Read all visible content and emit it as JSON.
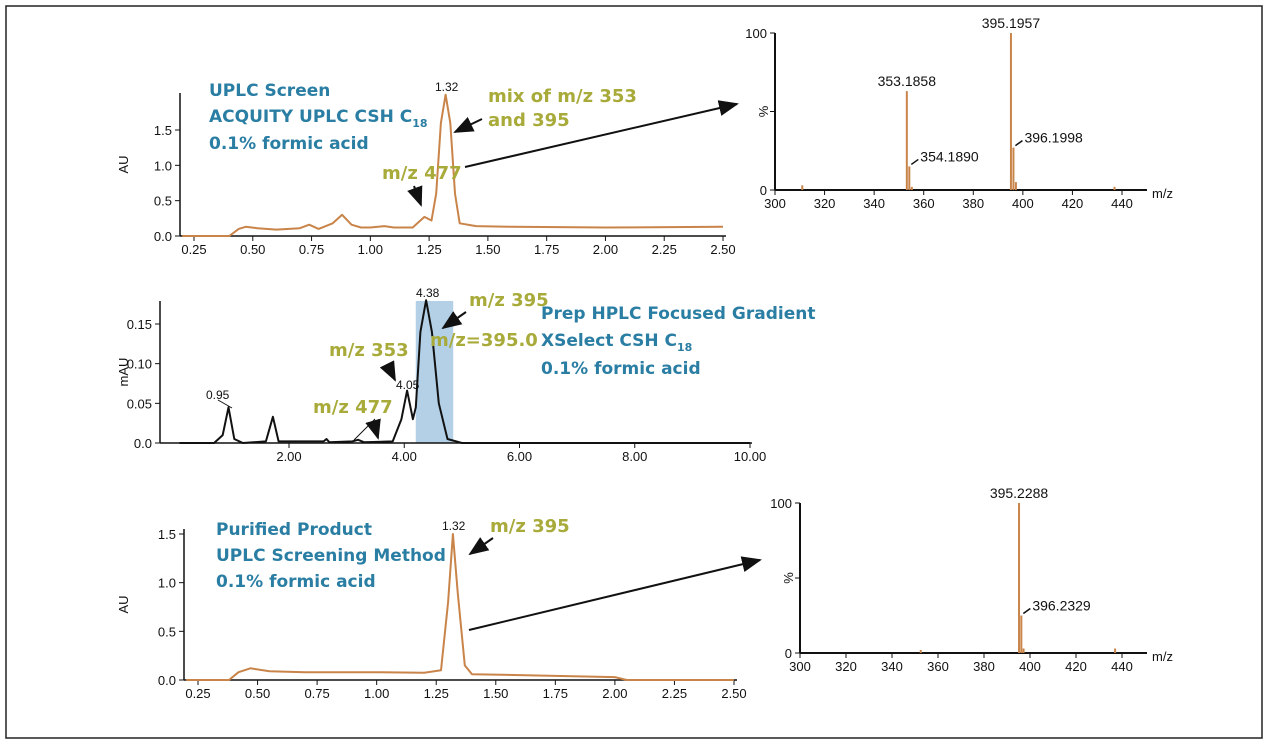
{
  "colors": {
    "trace_orange": "#c9844a",
    "trace_black": "#111111",
    "text_blue": "#2a7ea3",
    "text_olive": "#a8aa3a",
    "highlight": "#b3d0e6"
  },
  "annotations": {
    "c1_line1": "UPLC Screen",
    "c1_line2": "ACQUITY UPLC CSH C",
    "c1_line2_sub": "18",
    "c1_line3": "0.1% formic acid",
    "c1_mix1": "mix of m/z 353",
    "c1_mix2": "and 395",
    "c1_477": "m/z 477",
    "c1_peak": "1.32",
    "c2_line1": "Prep HPLC Focused Gradient",
    "c2_line2": "XSelect CSH C",
    "c2_line2_sub": "18",
    "c2_line3": "0.1% formic acid",
    "c2_395": "m/z 395",
    "c2_3950": "m/z=395.0",
    "c2_353": "m/z 353",
    "c2_477": "m/z 477",
    "c2_p1": "0.95",
    "c2_p2": "4.05",
    "c2_p3": "4.38",
    "c3_line1": "Purified Product",
    "c3_line2": "UPLC Screening Method",
    "c3_line3": "0.1% formic acid",
    "c3_395": "m/z 395",
    "c3_peak": "1.32"
  },
  "chart_data": [
    {
      "type": "line",
      "ylabel": "AU",
      "xlabel": "",
      "xlim": [
        0.2,
        2.5
      ],
      "ylim": [
        0,
        2.0
      ],
      "xticks": [
        "0.25",
        "0.50",
        "0.75",
        "1.00",
        "1.25",
        "1.50",
        "1.75",
        "2.00",
        "2.25",
        "2.50"
      ],
      "yticks": [
        "0.0",
        "0.5",
        "1.0",
        "1.5"
      ],
      "points": [
        [
          0.2,
          0
        ],
        [
          0.4,
          0
        ],
        [
          0.44,
          0.1
        ],
        [
          0.47,
          0.13
        ],
        [
          0.52,
          0.11
        ],
        [
          0.6,
          0.09
        ],
        [
          0.7,
          0.11
        ],
        [
          0.74,
          0.16
        ],
        [
          0.78,
          0.1
        ],
        [
          0.84,
          0.18
        ],
        [
          0.88,
          0.3
        ],
        [
          0.92,
          0.16
        ],
        [
          0.96,
          0.12
        ],
        [
          1.0,
          0.12
        ],
        [
          1.06,
          0.14
        ],
        [
          1.1,
          0.12
        ],
        [
          1.18,
          0.12
        ],
        [
          1.23,
          0.27
        ],
        [
          1.26,
          0.22
        ],
        [
          1.28,
          0.6
        ],
        [
          1.3,
          1.6
        ],
        [
          1.32,
          2.0
        ],
        [
          1.34,
          1.6
        ],
        [
          1.36,
          0.6
        ],
        [
          1.38,
          0.18
        ],
        [
          1.45,
          0.14
        ],
        [
          1.6,
          0.13
        ],
        [
          2.0,
          0.12
        ],
        [
          2.5,
          0.13
        ]
      ]
    },
    {
      "type": "line",
      "ylabel": "mAU",
      "xlabel": "",
      "xlim": [
        0.0,
        10.0
      ],
      "ylim": [
        0,
        0.18
      ],
      "xticks": [
        "2.00",
        "4.00",
        "6.00",
        "8.00",
        "10.00"
      ],
      "yticks": [
        "0.0",
        "0.05",
        "0.10",
        "0.15"
      ],
      "highlight_range": [
        4.2,
        4.85
      ],
      "points": [
        [
          0.1,
          0
        ],
        [
          0.7,
          0
        ],
        [
          0.85,
          0.01
        ],
        [
          0.95,
          0.045
        ],
        [
          1.05,
          0.005
        ],
        [
          1.2,
          0
        ],
        [
          1.6,
          0.002
        ],
        [
          1.72,
          0.033
        ],
        [
          1.82,
          0.002
        ],
        [
          2.6,
          0.002
        ],
        [
          2.65,
          0.005
        ],
        [
          2.7,
          0.001
        ],
        [
          3.1,
          0.002
        ],
        [
          3.2,
          0.004
        ],
        [
          3.3,
          0.001
        ],
        [
          3.8,
          0.002
        ],
        [
          3.95,
          0.03
        ],
        [
          4.05,
          0.066
        ],
        [
          4.15,
          0.03
        ],
        [
          4.2,
          0.045
        ],
        [
          4.28,
          0.14
        ],
        [
          4.38,
          0.18
        ],
        [
          4.48,
          0.14
        ],
        [
          4.6,
          0.05
        ],
        [
          4.75,
          0.005
        ],
        [
          5.0,
          0
        ],
        [
          10.0,
          0
        ]
      ]
    },
    {
      "type": "line",
      "ylabel": "AU",
      "xlabel": "",
      "xlim": [
        0.2,
        2.5
      ],
      "ylim": [
        0,
        1.5
      ],
      "xticks": [
        "0.25",
        "0.50",
        "0.75",
        "1.00",
        "1.25",
        "1.50",
        "1.75",
        "2.00",
        "2.25",
        "2.50"
      ],
      "yticks": [
        "0.0",
        "0.5",
        "1.0",
        "1.5"
      ],
      "points": [
        [
          0.2,
          0
        ],
        [
          0.38,
          0
        ],
        [
          0.42,
          0.08
        ],
        [
          0.47,
          0.12
        ],
        [
          0.55,
          0.09
        ],
        [
          0.7,
          0.08
        ],
        [
          1.0,
          0.08
        ],
        [
          1.2,
          0.075
        ],
        [
          1.27,
          0.1
        ],
        [
          1.3,
          0.8
        ],
        [
          1.32,
          1.5
        ],
        [
          1.34,
          0.9
        ],
        [
          1.37,
          0.15
        ],
        [
          1.4,
          0.06
        ],
        [
          1.6,
          0.05
        ],
        [
          2.0,
          0.03
        ],
        [
          2.05,
          0
        ],
        [
          2.5,
          0
        ]
      ]
    },
    {
      "type": "bar",
      "ylabel": "%",
      "xlabel": "m/z",
      "xlim": [
        300,
        450
      ],
      "ylim": [
        0,
        100
      ],
      "xticks": [
        "300",
        "320",
        "340",
        "360",
        "380",
        "400",
        "420",
        "440"
      ],
      "yticks": [
        "0",
        "100"
      ],
      "peaks": [
        [
          311,
          3
        ],
        [
          353.1858,
          63
        ],
        [
          354.189,
          15
        ],
        [
          355.2,
          2
        ],
        [
          395.1957,
          100
        ],
        [
          396.1998,
          27
        ],
        [
          397.2,
          5
        ],
        [
          437,
          2
        ]
      ],
      "labels": [
        {
          "mz": 353.1858,
          "text": "353.1858"
        },
        {
          "mz": 354.189,
          "text": "354.1890"
        },
        {
          "mz": 395.1957,
          "text": "395.1957"
        },
        {
          "mz": 396.1998,
          "text": "396.1998"
        }
      ]
    },
    {
      "type": "bar",
      "ylabel": "%",
      "xlabel": "m/z",
      "xlim": [
        300,
        450
      ],
      "ylim": [
        0,
        100
      ],
      "xticks": [
        "300",
        "320",
        "340",
        "360",
        "380",
        "400",
        "420",
        "440"
      ],
      "yticks": [
        "0",
        "100"
      ],
      "peaks": [
        [
          352.5,
          2
        ],
        [
          395.2288,
          100
        ],
        [
          396.2329,
          25
        ],
        [
          397.2,
          3
        ],
        [
          437,
          3
        ]
      ],
      "labels": [
        {
          "mz": 395.2288,
          "text": "395.2288"
        },
        {
          "mz": 396.2329,
          "text": "396.2329"
        }
      ]
    }
  ]
}
